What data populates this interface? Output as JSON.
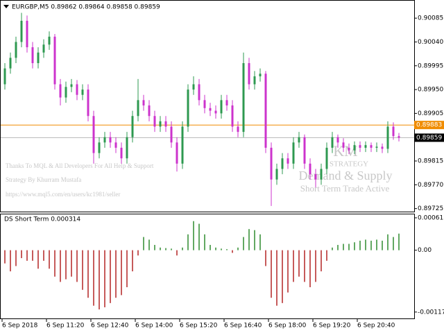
{
  "header": "EURGBP,M5  0.89862 0.89864 0.89858 0.89859",
  "overlay": {
    "credits": [
      "Thanks To MQL & All Developers For All Help & Support",
      "Strategy By Khurram Mustafa",
      "https://www.mql5.com/en/users/kc1981/seller"
    ],
    "logo": "KM",
    "logo_sub": "STRATEGY",
    "product": "Demand & Supply",
    "tagline": "Short Term Trade Active"
  },
  "chart_data": [
    {
      "type": "candlestick",
      "categories": [
        "6 Sep 2018",
        null,
        null,
        null,
        null,
        null,
        null,
        null,
        "6 Sep 11:20",
        null,
        null,
        null,
        null,
        null,
        null,
        null,
        "6 Sep 12:40",
        null,
        null,
        null,
        null,
        null,
        null,
        null,
        "6 Sep 14:00",
        null,
        null,
        null,
        null,
        null,
        null,
        null,
        "6 Sep 15:20",
        null,
        null,
        null,
        null,
        null,
        null,
        null,
        "6 Sep 16:40",
        null,
        null,
        null,
        null,
        null,
        null,
        null,
        "6 Sep 18:00",
        null,
        null,
        null,
        null,
        null,
        null,
        null,
        "6 Sep 19:20",
        null,
        null,
        null,
        null,
        null,
        null,
        null,
        "6 Sep 20:40",
        null,
        null,
        null,
        null,
        null,
        null,
        null
      ],
      "open": [
        0.8996,
        0.8999,
        0.9001,
        0.9004,
        0.9008,
        0.9003,
        0.9,
        0.9002,
        0.90035,
        0.9005,
        0.8996,
        0.89935,
        0.89955,
        0.8996,
        0.8994,
        0.8995,
        0.899,
        0.8983,
        0.8985,
        0.8986,
        0.8985,
        0.8984,
        0.8982,
        0.8986,
        0.899,
        0.8993,
        0.8992,
        0.899,
        0.8988,
        0.8989,
        0.8988,
        0.8985,
        0.8981,
        0.8988,
        0.8995,
        0.8996,
        0.8993,
        0.89915,
        0.8991,
        0.89905,
        0.8993,
        0.8992,
        0.8988,
        0.8987,
        0.9,
        0.8996,
        0.89975,
        0.8998,
        0.8984,
        0.8978,
        0.898,
        0.8982,
        0.8981,
        0.8985,
        0.8986,
        0.8981,
        0.8979,
        0.8978,
        0.898,
        0.8984,
        0.8986,
        0.8985,
        0.8984,
        0.89835,
        0.89845,
        0.8984,
        0.89845,
        0.8984,
        0.89842,
        0.89838,
        0.8988,
        0.89862
      ],
      "high": [
        0.9,
        0.9002,
        0.9005,
        0.90095,
        0.9009,
        0.9004,
        0.9003,
        0.90045,
        0.9006,
        0.90055,
        0.8997,
        0.89965,
        0.8997,
        0.89968,
        0.8996,
        0.8996,
        0.8991,
        0.8986,
        0.8987,
        0.8987,
        0.8986,
        0.8985,
        0.8987,
        0.8991,
        0.8997,
        0.8994,
        0.8993,
        0.8991,
        0.899,
        0.899,
        0.8989,
        0.8986,
        0.8989,
        0.8996,
        0.89975,
        0.8997,
        0.8994,
        0.89925,
        0.8992,
        0.8994,
        0.8994,
        0.8993,
        0.8989,
        0.9002,
        0.9001,
        0.89985,
        0.8999,
        0.89985,
        0.8985,
        0.8981,
        0.8983,
        0.8983,
        0.8986,
        0.8987,
        0.89865,
        0.8982,
        0.898,
        0.8981,
        0.8985,
        0.8987,
        0.89865,
        0.89858,
        0.89848,
        0.89852,
        0.89852,
        0.89852,
        0.8985,
        0.8985,
        0.89848,
        0.8989,
        0.89888,
        0.89868
      ],
      "low": [
        0.8995,
        0.8998,
        0.9,
        0.9003,
        0.9002,
        0.8999,
        0.8999,
        0.9001,
        0.90025,
        0.8995,
        0.8992,
        0.89925,
        0.89945,
        0.8993,
        0.8993,
        0.8989,
        0.8981,
        0.8982,
        0.8984,
        0.8984,
        0.8983,
        0.8981,
        0.8981,
        0.8985,
        0.8989,
        0.8991,
        0.8989,
        0.8987,
        0.8987,
        0.8987,
        0.8984,
        0.89795,
        0.898,
        0.8987,
        0.8994,
        0.8992,
        0.89905,
        0.899,
        0.89895,
        0.89895,
        0.8991,
        0.8987,
        0.8986,
        0.8986,
        0.8995,
        0.8995,
        0.89965,
        0.8983,
        0.8973,
        0.8977,
        0.8979,
        0.898,
        0.898,
        0.8984,
        0.898,
        0.8978,
        0.89765,
        0.8977,
        0.8979,
        0.8983,
        0.8984,
        0.89832,
        0.89828,
        0.89828,
        0.89832,
        0.89832,
        0.89832,
        0.89832,
        0.8983,
        0.8983,
        0.89855,
        0.89852
      ],
      "close": [
        0.8999,
        0.9001,
        0.9004,
        0.9008,
        0.9003,
        0.9,
        0.9002,
        0.90035,
        0.9005,
        0.8996,
        0.89935,
        0.89955,
        0.8996,
        0.8994,
        0.8995,
        0.899,
        0.8983,
        0.8985,
        0.8986,
        0.8985,
        0.8984,
        0.8982,
        0.8986,
        0.899,
        0.8993,
        0.8992,
        0.899,
        0.8988,
        0.8989,
        0.8988,
        0.8985,
        0.8981,
        0.8988,
        0.8995,
        0.8996,
        0.8993,
        0.89915,
        0.8991,
        0.89905,
        0.8993,
        0.8992,
        0.8988,
        0.8987,
        0.9,
        0.8996,
        0.89975,
        0.8998,
        0.8984,
        0.8978,
        0.898,
        0.8982,
        0.8981,
        0.8985,
        0.8986,
        0.8981,
        0.8979,
        0.8978,
        0.898,
        0.8984,
        0.8986,
        0.8985,
        0.8984,
        0.89835,
        0.89845,
        0.8984,
        0.89845,
        0.8984,
        0.89842,
        0.89838,
        0.8988,
        0.89862,
        0.89859
      ],
      "up_color": "#2e9950",
      "down_color": "#cc33cc",
      "ylim": [
        0.89718,
        0.90118
      ],
      "yticks": [
        0.90085,
        {
          "value": 0.9004,
          "label": "0.90040"
        },
        0.89995,
        {
          "value": 0.8995,
          "label": "0.89950"
        },
        0.89905,
        0.89815,
        {
          "value": 0.8977,
          "label": "0.89770"
        },
        0.89725
      ],
      "levels": [
        {
          "value": 0.89883,
          "color": "#f08c00"
        },
        {
          "value": 0.89859,
          "color": "#bbbbbb"
        }
      ]
    },
    {
      "type": "histogram",
      "title": "DS Short Term 0.000314",
      "values": [
        -0.00025,
        -0.0004,
        -0.0003,
        -0.00015,
        -0.0002,
        -0.0002,
        -0.00035,
        -0.0002,
        -0.00035,
        -0.0005,
        -0.0006,
        -0.00055,
        -0.0005,
        -0.0006,
        -0.00075,
        -0.0009,
        -0.00105,
        -0.00112,
        -0.00108,
        -0.001,
        -0.0009,
        -0.00085,
        -0.0007,
        -0.0004,
        -0.0001,
        0.00025,
        0.0002,
        0.0001,
        5e-05,
        4e-05,
        3e-05,
        -0.0001,
        5e-05,
        0.0003,
        0.00055,
        0.0005,
        0.0003,
        0.0001,
        5e-05,
        3e-05,
        2e-05,
        -5e-05,
        5e-05,
        0.00025,
        0.0004,
        0.00038,
        0.0003,
        -0.0003,
        -0.0009,
        -0.00105,
        -0.001,
        -0.0008,
        -0.0006,
        -0.0005,
        -0.0006,
        -0.0007,
        -0.0006,
        -0.0004,
        -0.0002,
        5e-05,
        0.0001,
        0.00012,
        0.00012,
        0.00015,
        0.00018,
        0.0002,
        0.00018,
        0.0002,
        0.00018,
        0.0003,
        0.00025,
        0.000314
      ],
      "up_color": "#2e8b2e",
      "down_color": "#b22222",
      "ylim": [
        -0.001304,
        0.000678
      ],
      "yticks": [
        0.000613,
        {
          "value": 0,
          "label": "0.00"
        },
        -0.00117
      ]
    }
  ]
}
